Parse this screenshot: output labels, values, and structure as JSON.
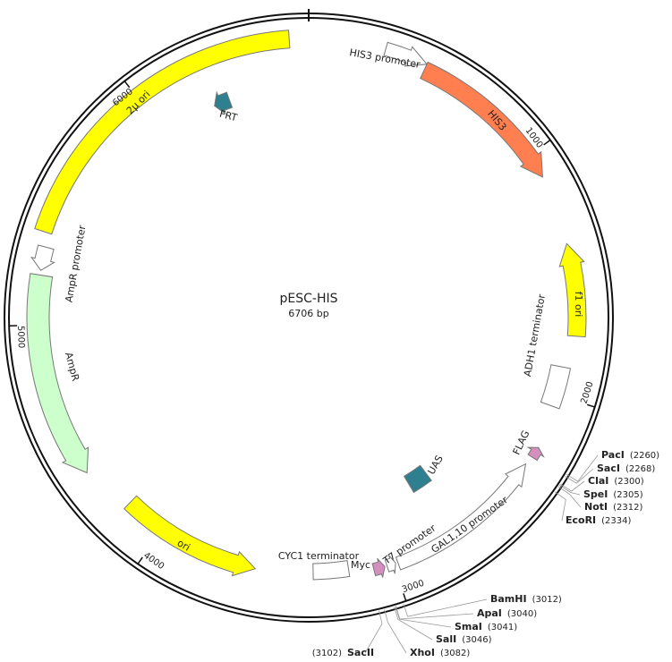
{
  "title": "pESC-HIS",
  "length": "6706 bp",
  "features": [
    {
      "label": "2µ ori"
    },
    {
      "label": "HIS3 promoter"
    },
    {
      "label": "HIS3"
    },
    {
      "label": "f1 ori"
    },
    {
      "label": "ADH1 terminator"
    },
    {
      "label": "FLAG"
    },
    {
      "label": "GAL1,10 promoter"
    },
    {
      "label": "T7 promoter"
    },
    {
      "label": "Myc"
    },
    {
      "label": "CYC1 terminator"
    },
    {
      "label": "UAS"
    },
    {
      "label": "ori"
    },
    {
      "label": "AmpR"
    },
    {
      "label": "AmpR promoter"
    },
    {
      "label": "FRT"
    }
  ],
  "ticks": [
    1000,
    2000,
    3000,
    4000,
    5000,
    6000
  ],
  "sites": [
    {
      "name": "PacI",
      "position": "(2260)"
    },
    {
      "name": "SacI",
      "position": "(2268)"
    },
    {
      "name": "ClaI",
      "position": "(2300)"
    },
    {
      "name": "SpeI",
      "position": "(2305)"
    },
    {
      "name": "NotI",
      "position": "(2312)"
    },
    {
      "name": "EcoRI",
      "position": "(2334)"
    },
    {
      "name": "BamHI",
      "position": "(3012)"
    },
    {
      "name": "ApaI",
      "position": "(3040)"
    },
    {
      "name": "SmaI",
      "position": "(3041)"
    },
    {
      "name": "SalI",
      "position": "(3046)"
    },
    {
      "name": "XhoI",
      "position": "(3082)"
    },
    {
      "name": "SacII",
      "position": "(3102)"
    }
  ]
}
